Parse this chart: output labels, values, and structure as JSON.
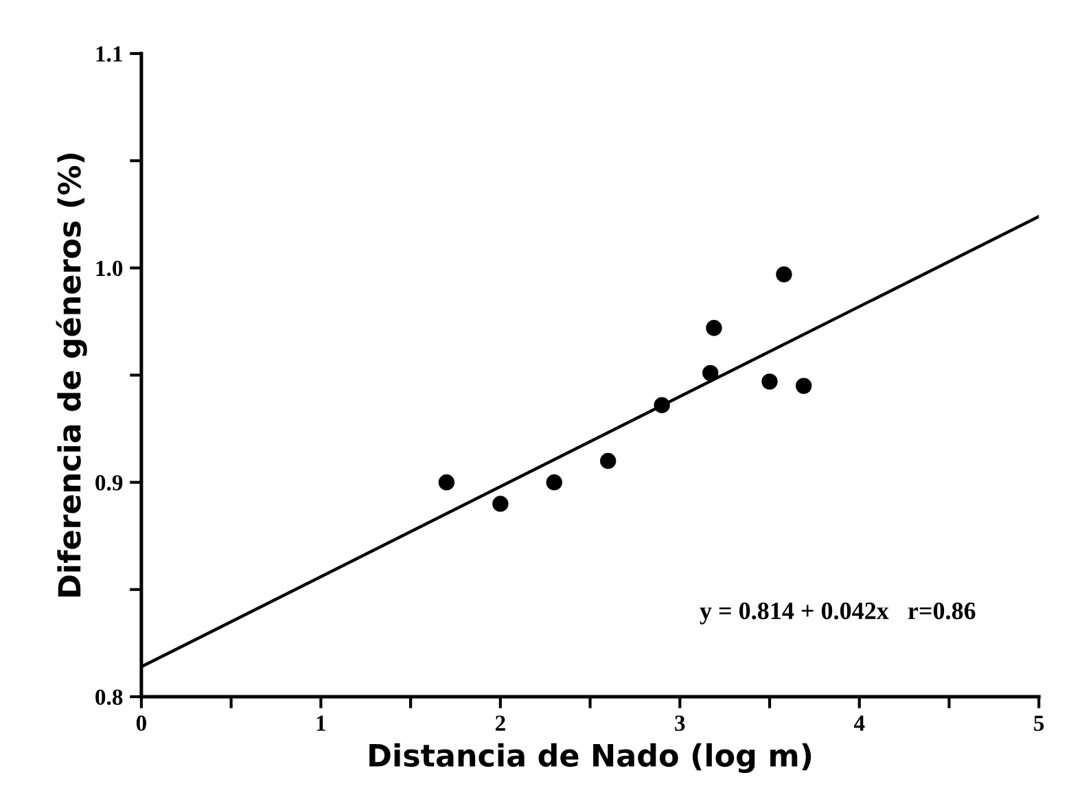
{
  "chart_data": {
    "type": "scatter",
    "xlabel": "Distancia de Nado (log m)",
    "ylabel": "Diferencia de géneros (%)",
    "xlim": [
      0,
      5
    ],
    "ylim": [
      0.8,
      1.1
    ],
    "xticks": [
      0,
      {
        "value": 0.5,
        "label": null
      },
      1,
      {
        "value": 1.5,
        "label": null
      },
      2,
      {
        "value": 2.5,
        "label": null
      },
      3,
      {
        "value": 3.5,
        "label": null
      },
      4,
      {
        "value": 4.5,
        "label": null
      },
      5
    ],
    "yticks": [
      {
        "value": 0.8,
        "label": "0.8"
      },
      {
        "value": 0.85,
        "label": null
      },
      {
        "value": 0.9,
        "label": "0.9"
      },
      {
        "value": 0.95,
        "label": null
      },
      {
        "value": 1.0,
        "label": "1.0"
      },
      {
        "value": 1.05,
        "label": null
      },
      {
        "value": 1.1,
        "label": "1.1"
      }
    ],
    "grid": false,
    "legend": false,
    "series": [
      {
        "marker": "circle",
        "color": "#000000",
        "x": [
          1.7,
          2.0,
          2.3,
          2.6,
          2.9,
          3.17,
          3.19,
          3.5,
          3.58,
          3.69
        ],
        "values": [
          0.9,
          0.89,
          0.9,
          0.91,
          0.936,
          0.951,
          0.972,
          0.947,
          0.997,
          0.945
        ]
      },
      {
        "type": "line",
        "marker": "none",
        "color": "#000000",
        "x": [
          0,
          5
        ],
        "values": [
          0.814,
          1.024
        ]
      }
    ],
    "annotations": [
      "y = 0.814 + 0.042x   r=0.86"
    ]
  }
}
